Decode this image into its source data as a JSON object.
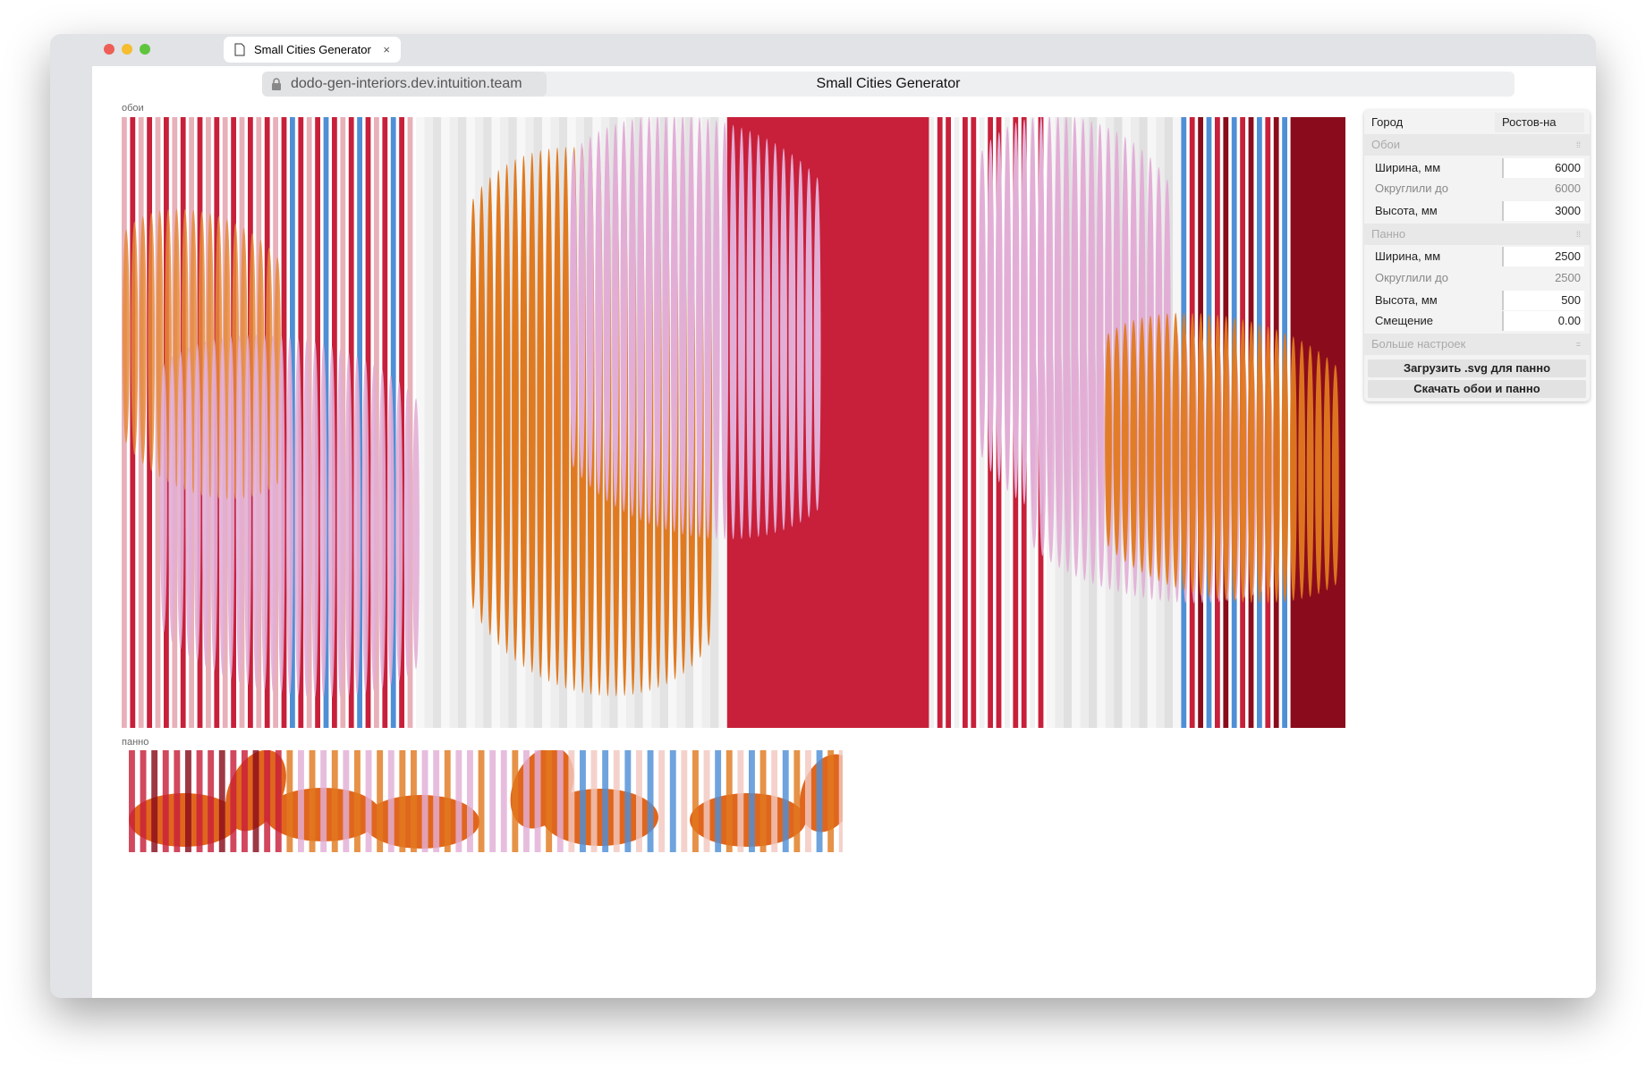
{
  "browser": {
    "tab_title": "Small Cities Generator",
    "url": "dodo-gen-interiors.dev.intuition.team",
    "page_title": "Small Cities Generator"
  },
  "canvas": {
    "wallpaper_label": "обои",
    "panel_label": "панно"
  },
  "settings": {
    "city": {
      "label": "Город",
      "value": "Ростов-на"
    },
    "wallpaper": {
      "title": "Обои",
      "rows": [
        {
          "label": "Ширина, мм",
          "value": "6000"
        },
        {
          "label": "Округлили до",
          "value": "6000"
        },
        {
          "label": "Высота, мм",
          "value": "3000"
        }
      ]
    },
    "panel": {
      "title": "Панно",
      "rows": [
        {
          "label": "Ширина, мм",
          "value": "2500"
        },
        {
          "label": "Округлили до",
          "value": "2500"
        },
        {
          "label": "Высота, мм",
          "value": "500"
        },
        {
          "label": "Смещение",
          "value": "0.00"
        }
      ]
    },
    "more": "Больше настроек",
    "buttons": [
      "Загрузить .svg для панно",
      "Скачать обои и панно"
    ]
  }
}
